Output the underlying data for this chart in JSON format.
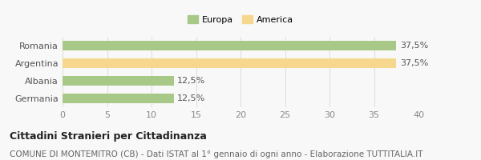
{
  "categories": [
    "Romania",
    "Argentina",
    "Albania",
    "Germania"
  ],
  "values": [
    37.5,
    37.5,
    12.5,
    12.5
  ],
  "bar_colors": [
    "#a8c888",
    "#f5d78e",
    "#a8c888",
    "#a8c888"
  ],
  "legend_labels": [
    "Europa",
    "America"
  ],
  "legend_colors": [
    "#a8c888",
    "#f5d78e"
  ],
  "value_labels": [
    "37,5%",
    "37,5%",
    "12,5%",
    "12,5%"
  ],
  "xlim": [
    0,
    40
  ],
  "xticks": [
    0,
    5,
    10,
    15,
    20,
    25,
    30,
    35,
    40
  ],
  "title_bold": "Cittadini Stranieri per Cittadinanza",
  "subtitle": "COMUNE DI MONTEMITRO (CB) - Dati ISTAT al 1° gennaio di ogni anno - Elaborazione TUTTITALIA.IT",
  "background_color": "#f8f8f8",
  "bar_height": 0.55,
  "label_fontsize": 8,
  "tick_fontsize": 8,
  "title_fontsize": 9,
  "subtitle_fontsize": 7.5
}
